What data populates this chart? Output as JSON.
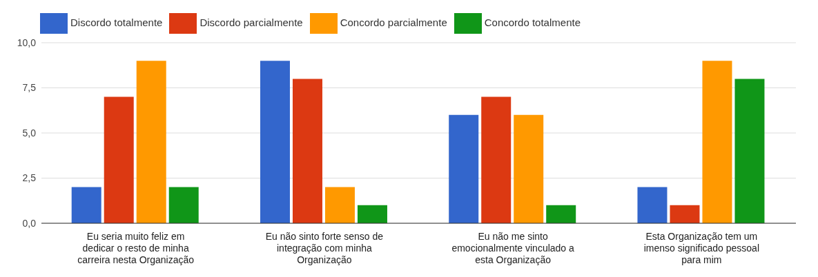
{
  "chart_data": {
    "type": "bar",
    "categories": [
      "Eu seria muito feliz em dedicar o resto de minha carreira nesta Organização",
      "Eu não sinto forte senso de integração com minha Organização",
      "Eu não me sinto emocionalmente vinculado a esta Organização",
      "Esta Organização tem um imenso significado pessoal para mim"
    ],
    "series": [
      {
        "name": "Discordo totalmente",
        "color": "#3366cc",
        "values": [
          2,
          9,
          6,
          2
        ]
      },
      {
        "name": "Discordo parcialmente",
        "color": "#dc3912",
        "values": [
          7,
          8,
          7,
          1
        ]
      },
      {
        "name": "Concordo parcialmente",
        "color": "#ff9900",
        "values": [
          9,
          2,
          6,
          9
        ]
      },
      {
        "name": "Concordo totalmente",
        "color": "#109618",
        "values": [
          2,
          1,
          1,
          8
        ]
      }
    ],
    "ylim": [
      0,
      10
    ],
    "yticks": [
      {
        "value": 0,
        "label": "0,0"
      },
      {
        "value": 2.5,
        "label": "2,5"
      },
      {
        "value": 5,
        "label": "5,0"
      },
      {
        "value": 7.5,
        "label": "7,5"
      },
      {
        "value": 10,
        "label": "10,0"
      }
    ],
    "grid": "y",
    "legend": "top"
  }
}
